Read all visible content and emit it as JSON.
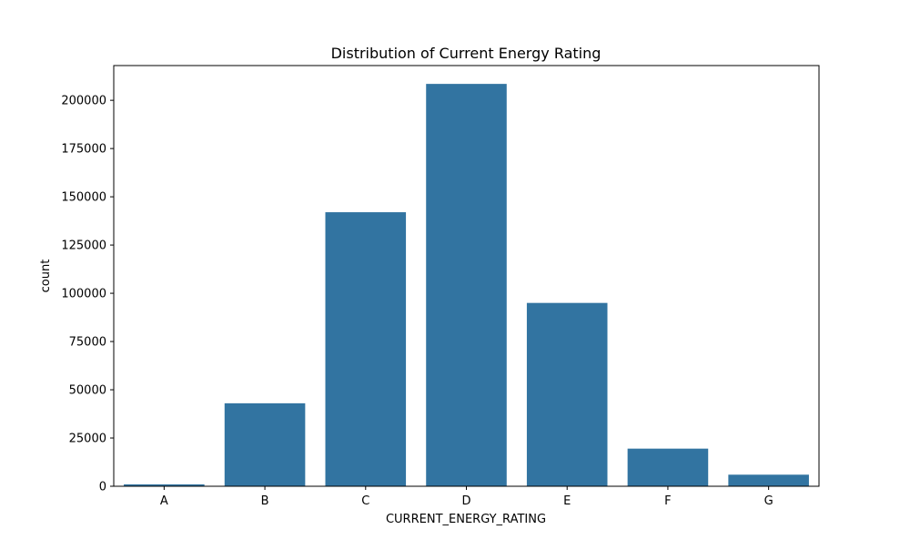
{
  "chart_data": {
    "type": "bar",
    "title": "Distribution of Current Energy Rating",
    "xlabel": "CURRENT_ENERGY_RATING",
    "ylabel": "count",
    "categories": [
      "A",
      "B",
      "C",
      "D",
      "E",
      "F",
      "G"
    ],
    "values": [
      1000,
      43000,
      142000,
      208500,
      95000,
      19500,
      6000
    ],
    "ylim": [
      0,
      218000
    ],
    "yticks": [
      0,
      25000,
      50000,
      75000,
      100000,
      125000,
      150000,
      175000,
      200000
    ],
    "ytick_labels": [
      "0",
      "25000",
      "50000",
      "75000",
      "100000",
      "125000",
      "150000",
      "175000",
      "200000"
    ],
    "bar_color": "#3274a1",
    "grid": false,
    "legend": "none"
  }
}
